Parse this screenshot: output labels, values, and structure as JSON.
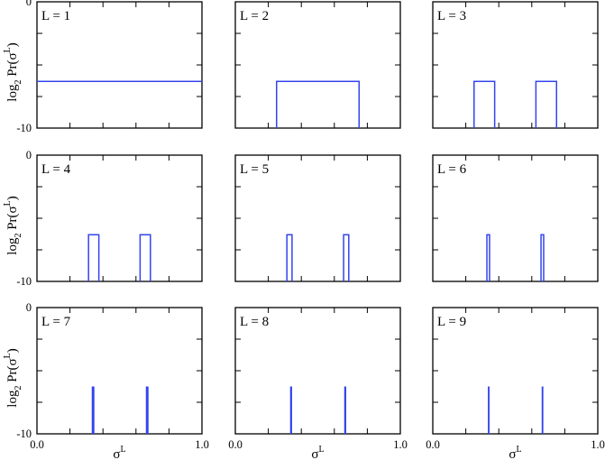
{
  "colors": {
    "series": "#3344ee",
    "axis": "#000000"
  },
  "axis_text": {
    "ylabel_main": "log",
    "ylabel_sub": "2",
    "ylabel_func": "Pr(σ",
    "ylabel_sup": "L",
    "ylabel_close": ")",
    "xlabel_main": "σ",
    "xlabel_sup": "L"
  },
  "chart_data": [
    {
      "type": "line",
      "panel_label": "L = 1",
      "title": "",
      "xlim": [
        0,
        1
      ],
      "ylim": [
        -10,
        0
      ],
      "yticks": [
        0,
        -10
      ],
      "xticks": [
        0.0,
        1.0
      ],
      "series": [
        {
          "x": [
            0,
            1
          ],
          "y": [
            -6.3,
            -6.3
          ]
        }
      ]
    },
    {
      "type": "line",
      "panel_label": "L = 2",
      "title": "",
      "xlim": [
        0,
        1
      ],
      "ylim": [
        -10,
        0
      ],
      "yticks": [
        0,
        -10
      ],
      "xticks": [
        0.0,
        1.0
      ],
      "series": [
        {
          "x": [
            0.25,
            0.25,
            0.75,
            0.75
          ],
          "y": [
            -10,
            -6.3,
            -6.3,
            -10
          ]
        }
      ]
    },
    {
      "type": "line",
      "panel_label": "L = 3",
      "title": "",
      "xlim": [
        0,
        1
      ],
      "ylim": [
        -10,
        0
      ],
      "yticks": [
        0,
        -10
      ],
      "xticks": [
        0.0,
        1.0
      ],
      "series": [
        {
          "x": [
            0.25,
            0.25,
            0.375,
            0.375
          ],
          "y": [
            -10,
            -6.3,
            -6.3,
            -10
          ]
        },
        {
          "x": [
            0.625,
            0.625,
            0.75,
            0.75
          ],
          "y": [
            -10,
            -6.3,
            -6.3,
            -10
          ]
        }
      ]
    },
    {
      "type": "line",
      "panel_label": "L = 4",
      "title": "",
      "xlim": [
        0,
        1
      ],
      "ylim": [
        -10,
        0
      ],
      "yticks": [
        0,
        -10
      ],
      "xticks": [
        0.0,
        1.0
      ],
      "series": [
        {
          "x": [
            0.3125,
            0.3125,
            0.375,
            0.375
          ],
          "y": [
            -10,
            -6.3,
            -6.3,
            -10
          ]
        },
        {
          "x": [
            0.625,
            0.625,
            0.6875,
            0.6875
          ],
          "y": [
            -10,
            -6.3,
            -6.3,
            -10
          ]
        }
      ]
    },
    {
      "type": "line",
      "panel_label": "L = 5",
      "title": "",
      "xlim": [
        0,
        1
      ],
      "ylim": [
        -10,
        0
      ],
      "yticks": [
        0,
        -10
      ],
      "xticks": [
        0.0,
        1.0
      ],
      "series": [
        {
          "x": [
            0.3125,
            0.3125,
            0.34375,
            0.34375
          ],
          "y": [
            -10,
            -6.3,
            -6.3,
            -10
          ]
        },
        {
          "x": [
            0.65625,
            0.65625,
            0.6875,
            0.6875
          ],
          "y": [
            -10,
            -6.3,
            -6.3,
            -10
          ]
        }
      ]
    },
    {
      "type": "line",
      "panel_label": "L = 6",
      "title": "",
      "xlim": [
        0,
        1
      ],
      "ylim": [
        -10,
        0
      ],
      "yticks": [
        0,
        -10
      ],
      "xticks": [
        0.0,
        1.0
      ],
      "series": [
        {
          "x": [
            0.328,
            0.328,
            0.344,
            0.344
          ],
          "y": [
            -10,
            -6.3,
            -6.3,
            -10
          ]
        },
        {
          "x": [
            0.656,
            0.656,
            0.672,
            0.672
          ],
          "y": [
            -10,
            -6.3,
            -6.3,
            -10
          ]
        }
      ]
    },
    {
      "type": "line",
      "panel_label": "L = 7",
      "title": "",
      "xlim": [
        0,
        1
      ],
      "ylim": [
        -10,
        0
      ],
      "yticks": [
        0,
        -10
      ],
      "xticks": [
        0.0,
        1.0
      ],
      "series": [
        {
          "x": [
            0.336,
            0.336,
            0.344,
            0.344
          ],
          "y": [
            -10,
            -6.3,
            -6.3,
            -10
          ]
        },
        {
          "x": [
            0.664,
            0.664,
            0.672,
            0.672
          ],
          "y": [
            -10,
            -6.3,
            -6.3,
            -10
          ]
        }
      ]
    },
    {
      "type": "line",
      "panel_label": "L = 8",
      "title": "",
      "xlim": [
        0,
        1
      ],
      "ylim": [
        -10,
        0
      ],
      "yticks": [
        0,
        -10
      ],
      "xticks": [
        0.0,
        1.0
      ],
      "series": [
        {
          "x": [
            0.336,
            0.336,
            0.34,
            0.34
          ],
          "y": [
            -10,
            -6.3,
            -6.3,
            -10
          ]
        },
        {
          "x": [
            0.664,
            0.664,
            0.668,
            0.668
          ],
          "y": [
            -10,
            -6.3,
            -6.3,
            -10
          ]
        }
      ]
    },
    {
      "type": "line",
      "panel_label": "L = 9",
      "title": "",
      "xlim": [
        0,
        1
      ],
      "ylim": [
        -10,
        0
      ],
      "yticks": [
        0,
        -10
      ],
      "xticks": [
        0.0,
        1.0
      ],
      "series": [
        {
          "x": [
            0.338,
            0.338,
            0.34,
            0.34
          ],
          "y": [
            -10,
            -6.3,
            -6.3,
            -10
          ]
        },
        {
          "x": [
            0.664,
            0.664,
            0.666,
            0.666
          ],
          "y": [
            -10,
            -6.3,
            -6.3,
            -10
          ]
        }
      ]
    }
  ]
}
